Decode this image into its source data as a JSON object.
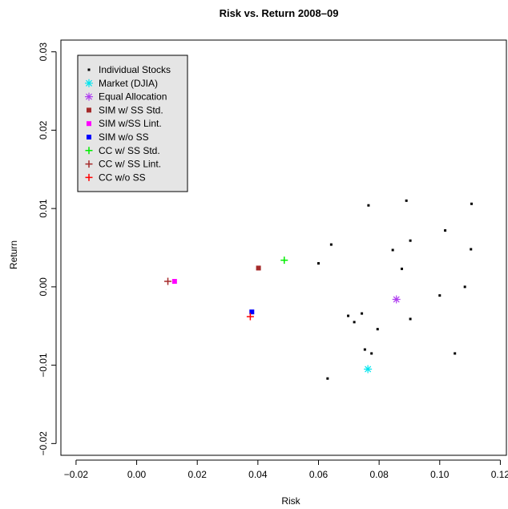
{
  "chart_data": {
    "type": "scatter",
    "title": "Risk vs. Return 2008–09",
    "xlabel": "Risk",
    "ylabel": "Return",
    "xlim": [
      -0.025,
      0.122
    ],
    "ylim": [
      -0.0215,
      0.0315
    ],
    "x_ticks": [
      -0.02,
      0.0,
      0.02,
      0.04,
      0.06,
      0.08,
      0.1,
      0.12
    ],
    "x_tick_labels": [
      "−0.02",
      "0.00",
      "0.02",
      "0.04",
      "0.06",
      "0.08",
      "0.10",
      "0.12"
    ],
    "y_ticks": [
      -0.02,
      -0.01,
      0.0,
      0.01,
      0.02,
      0.03
    ],
    "y_tick_labels": [
      "−0.02",
      "−0.01",
      "0.00",
      "0.01",
      "0.02",
      "0.03"
    ],
    "grid": false,
    "legend_position": "top-left",
    "series": [
      {
        "name": "Individual Stocks",
        "marker": "small-square",
        "color": "#000000",
        "points": [
          [
            0.0765,
            0.0104
          ],
          [
            0.089,
            0.011
          ],
          [
            0.1105,
            0.0106
          ],
          [
            0.1018,
            0.0072
          ],
          [
            0.0642,
            0.0054
          ],
          [
            0.0903,
            0.0059
          ],
          [
            0.0845,
            0.0047
          ],
          [
            0.1103,
            0.0048
          ],
          [
            0.06,
            0.003
          ],
          [
            0.0875,
            0.0023
          ],
          [
            0.1083,
            0.0
          ],
          [
            0.1,
            -0.0011
          ],
          [
            0.0743,
            -0.0034
          ],
          [
            0.0698,
            -0.0037
          ],
          [
            0.0718,
            -0.0045
          ],
          [
            0.0903,
            -0.0041
          ],
          [
            0.0795,
            -0.0054
          ],
          [
            0.0753,
            -0.008
          ],
          [
            0.0775,
            -0.0085
          ],
          [
            0.105,
            -0.0085
          ],
          [
            0.063,
            -0.0117
          ]
        ]
      },
      {
        "name": "Market (DJIA)",
        "marker": "asterisk",
        "color": "#00e5ee",
        "points": [
          [
            0.0763,
            -0.0105
          ]
        ]
      },
      {
        "name": "Equal Allocation",
        "marker": "asterisk",
        "color": "#b040f0",
        "points": [
          [
            0.0857,
            -0.0016
          ]
        ]
      },
      {
        "name": "SIM w/ SS Std.",
        "marker": "square",
        "color": "#a52a2a",
        "points": [
          [
            0.0402,
            0.0024
          ]
        ]
      },
      {
        "name": "SIM w/SS Lint.",
        "marker": "square",
        "color": "#ff00ff",
        "points": [
          [
            0.0125,
            0.0007
          ]
        ]
      },
      {
        "name": "SIM w/o SS",
        "marker": "square",
        "color": "#0000ff",
        "points": [
          [
            0.038,
            -0.0032
          ]
        ]
      },
      {
        "name": "CC w/ SS Std.",
        "marker": "plus",
        "color": "#00ee00",
        "points": [
          [
            0.0487,
            0.0034
          ]
        ]
      },
      {
        "name": "CC w/ SS Lint.",
        "marker": "plus",
        "color": "#a52a2a",
        "points": [
          [
            0.0103,
            0.0007
          ]
        ]
      },
      {
        "name": "CC w/o SS",
        "marker": "plus",
        "color": "#ff0000",
        "points": [
          [
            0.0375,
            -0.0038
          ]
        ]
      }
    ]
  }
}
